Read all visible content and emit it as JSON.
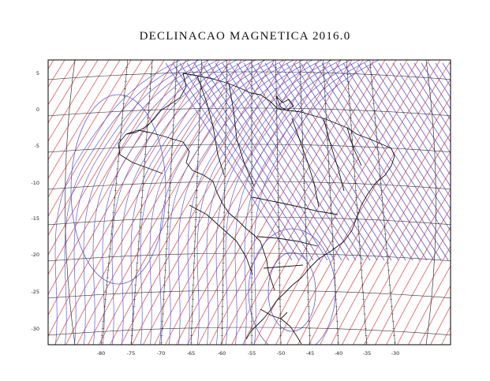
{
  "title": "DECLINACAO MAGNETICA 2016.0",
  "longitude_ticks": [
    "-80",
    "-75",
    "-70",
    "-65",
    "-60",
    "-55",
    "-50",
    "-45",
    "-40",
    "-35",
    "-30"
  ],
  "latitude_ticks": [
    "5",
    "0",
    "-5",
    "-10",
    "-15",
    "-20",
    "-25",
    "-30"
  ],
  "colors": {
    "red_isolines": "#e05a5a",
    "blue_isolines": "#5a5ad8",
    "graticule": "#333333",
    "borders": "#111111",
    "frame": "#000000"
  },
  "layers": [
    "declination-isogonic-lines",
    "annual-variation-lines",
    "graticule",
    "country-and-state-borders"
  ]
}
